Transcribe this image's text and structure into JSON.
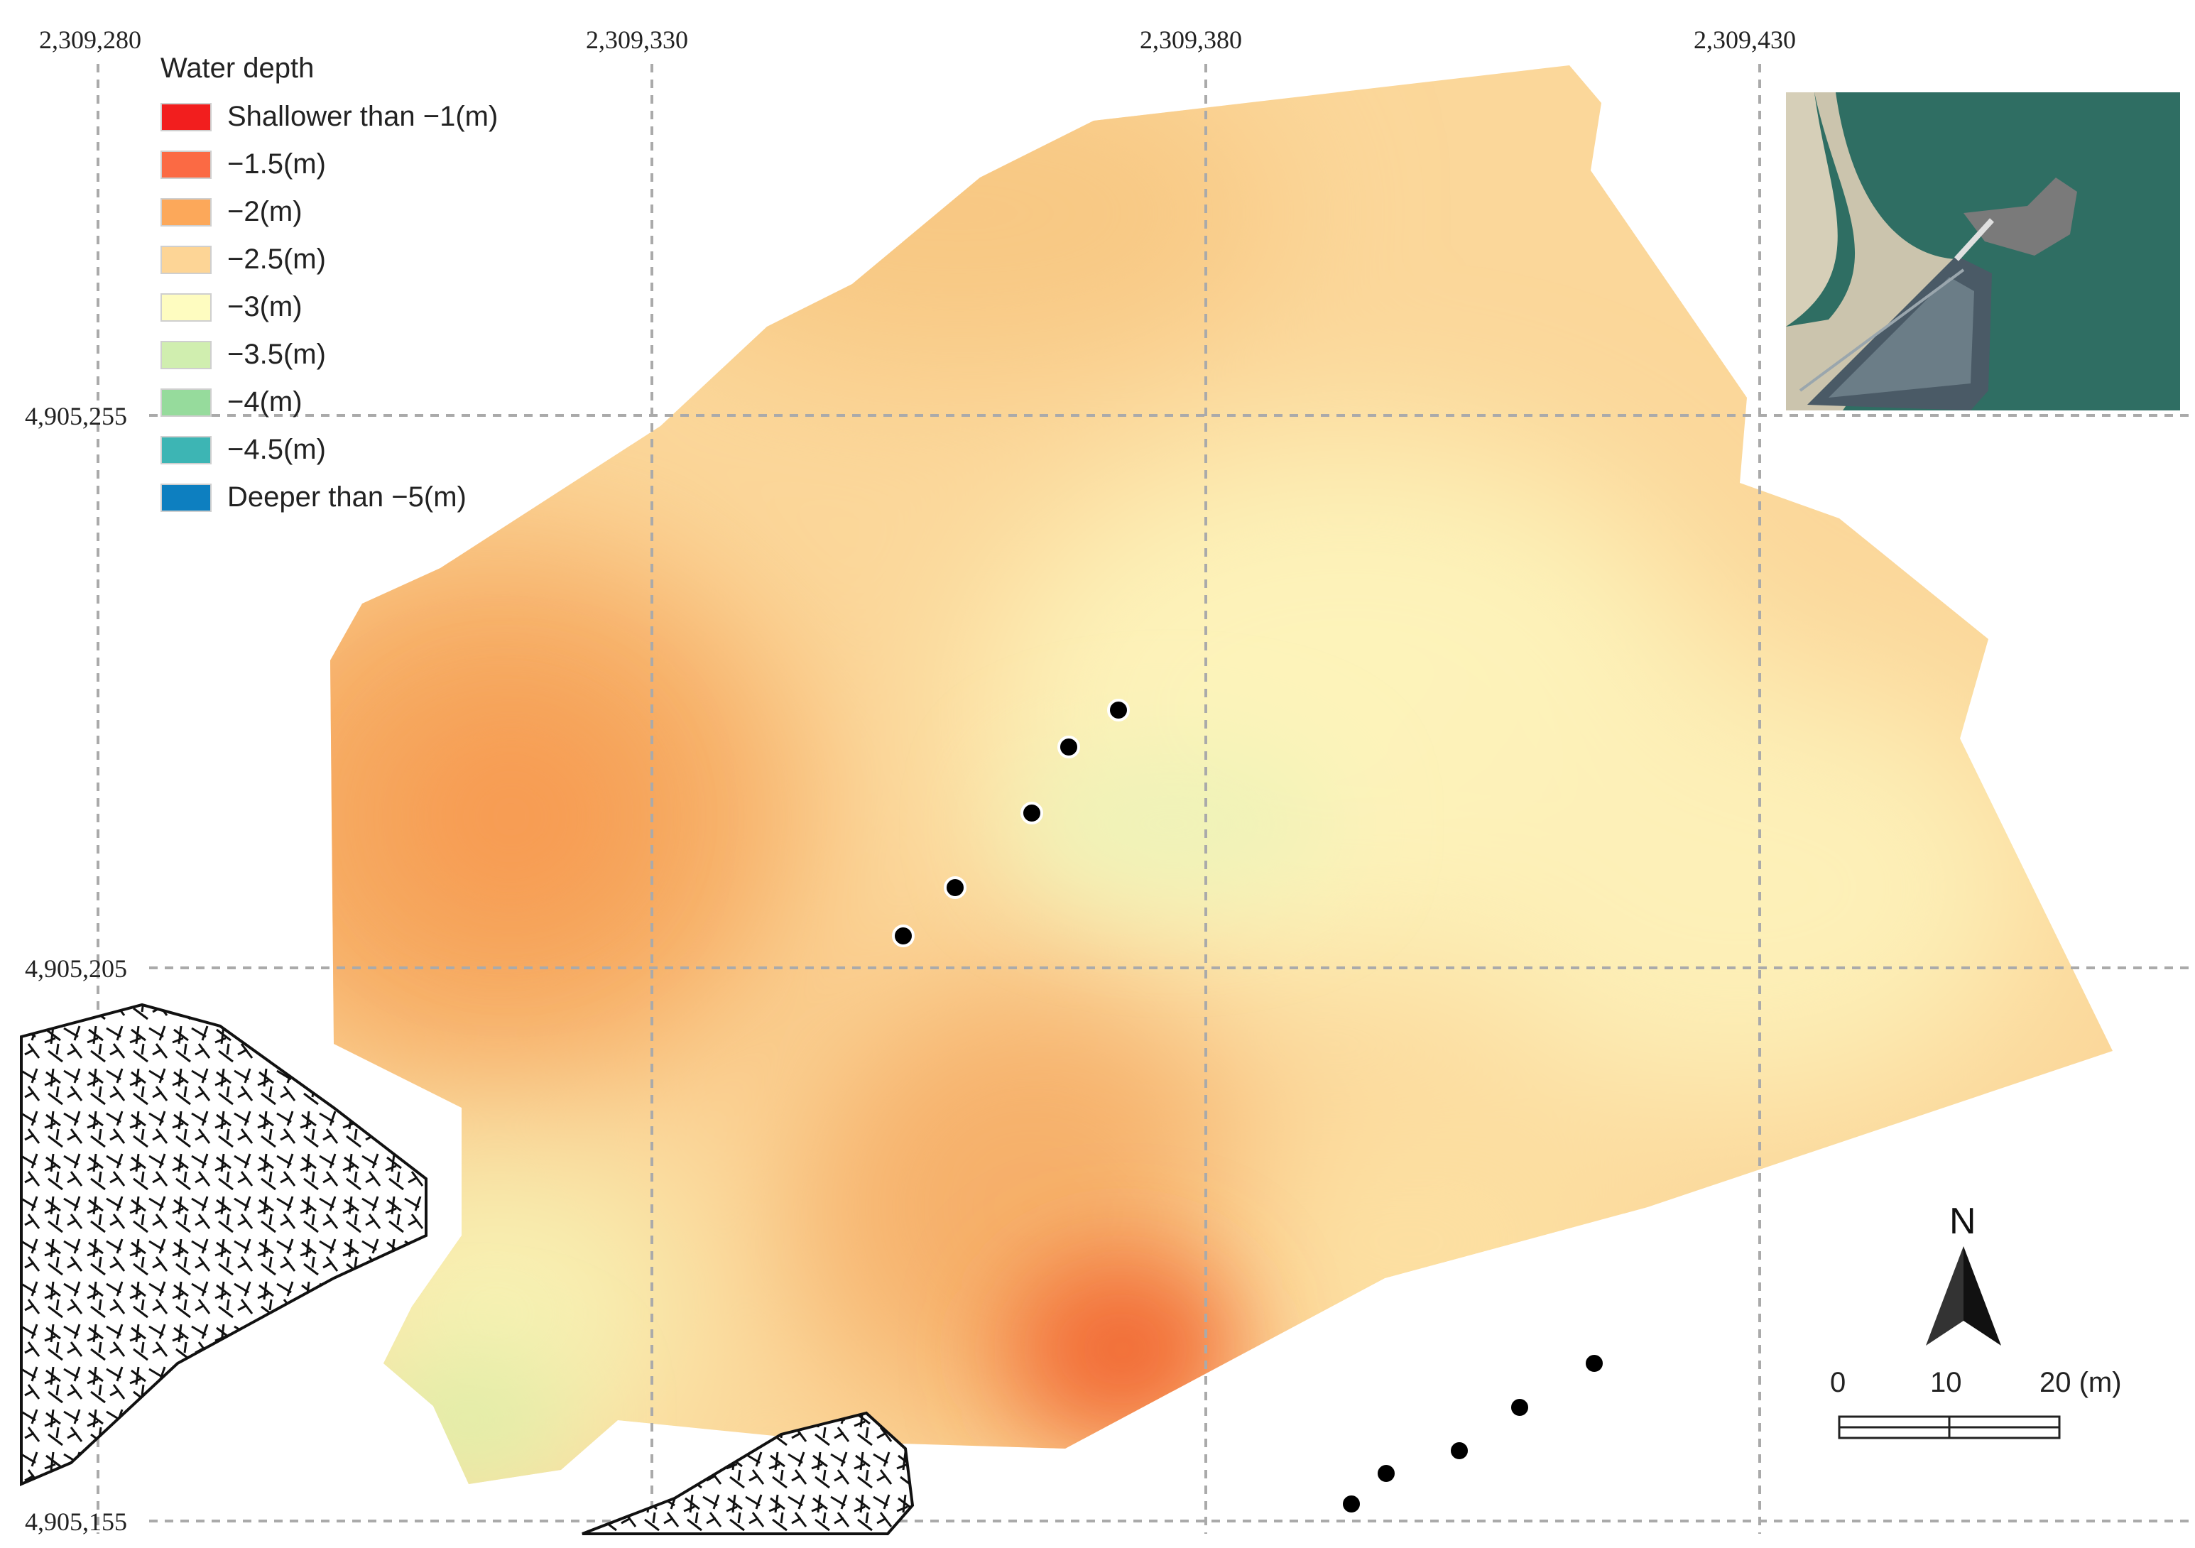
{
  "map": {
    "x_coords": [
      "2,309,280",
      "2,309,330",
      "2,309,380",
      "2,309,430"
    ],
    "y_coords": [
      "4,905,255",
      "4,905,205",
      "4,905,155"
    ]
  },
  "legend": {
    "title": "Water depth",
    "items": [
      {
        "label": "Shallower than −1(m)",
        "color": "#f21e1e"
      },
      {
        "label": "−1.5(m)",
        "color": "#fb6a44"
      },
      {
        "label": "−2(m)",
        "color": "#fca85a"
      },
      {
        "label": "−2.5(m)",
        "color": "#fdd596"
      },
      {
        "label": "−3(m)",
        "color": "#fefcc0"
      },
      {
        "label": "−3.5(m)",
        "color": "#d0eeaf"
      },
      {
        "label": "−4(m)",
        "color": "#96db9c"
      },
      {
        "label": "−4.5(m)",
        "color": "#3db5b4"
      },
      {
        "label": "Deeper than −5(m)",
        "color": "#0d7fc0"
      }
    ]
  },
  "scale_bar": {
    "labels": [
      "0",
      "10",
      "20 (m)"
    ]
  },
  "north_arrow": {
    "label": "N"
  },
  "inset": {
    "description_icon": "satellite-inset-image"
  }
}
